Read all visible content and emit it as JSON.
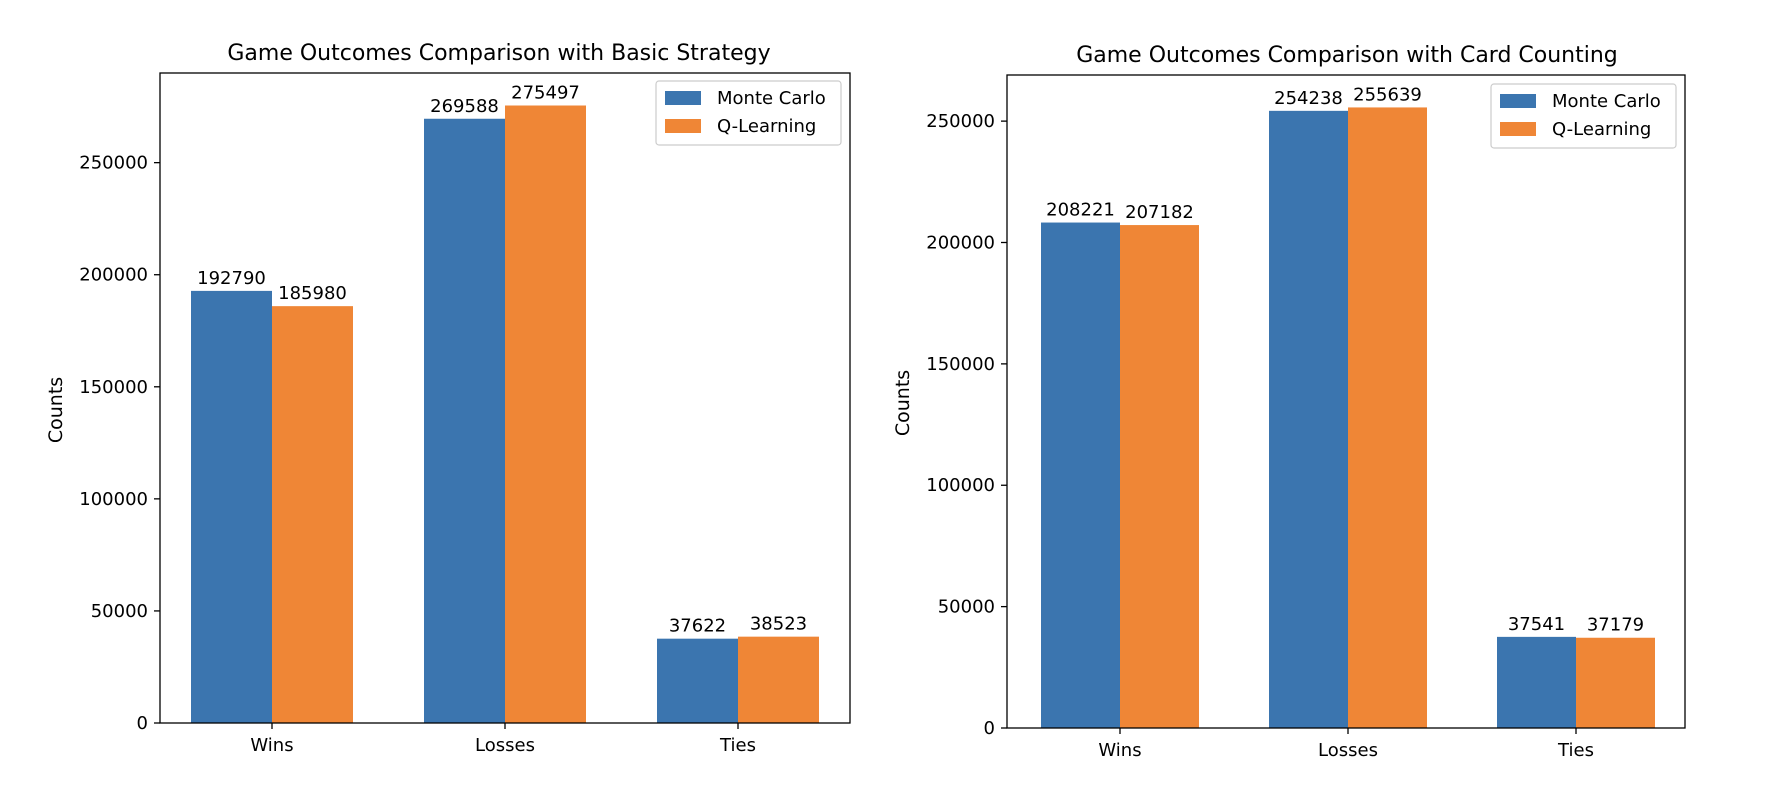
{
  "chart_data": [
    {
      "type": "bar",
      "title": "Game Outcomes Comparison with Basic Strategy",
      "xlabel": "",
      "ylabel": "Counts",
      "categories": [
        "Wins",
        "Losses",
        "Ties"
      ],
      "series": [
        {
          "name": "Monte Carlo",
          "color": "#3b75af",
          "values": [
            192790,
            269588,
            37622
          ]
        },
        {
          "name": "Q-Learning",
          "color": "#ef8636",
          "values": [
            185980,
            275497,
            38523
          ]
        }
      ],
      "ylim": [
        0,
        290000
      ],
      "yticks": [
        0,
        50000,
        100000,
        150000,
        200000,
        250000
      ],
      "legend_position": "top-right",
      "grid": false
    },
    {
      "type": "bar",
      "title": "Game Outcomes Comparison with Card Counting",
      "xlabel": "",
      "ylabel": "Counts",
      "categories": [
        "Wins",
        "Losses",
        "Ties"
      ],
      "series": [
        {
          "name": "Monte Carlo",
          "color": "#3b75af",
          "values": [
            208221,
            254238,
            37541
          ]
        },
        {
          "name": "Q-Learning",
          "color": "#ef8636",
          "values": [
            207182,
            255639,
            37179
          ]
        }
      ],
      "ylim": [
        0,
        269000
      ],
      "yticks": [
        0,
        50000,
        100000,
        150000,
        200000,
        250000
      ],
      "legend_position": "top-right",
      "grid": false
    }
  ]
}
